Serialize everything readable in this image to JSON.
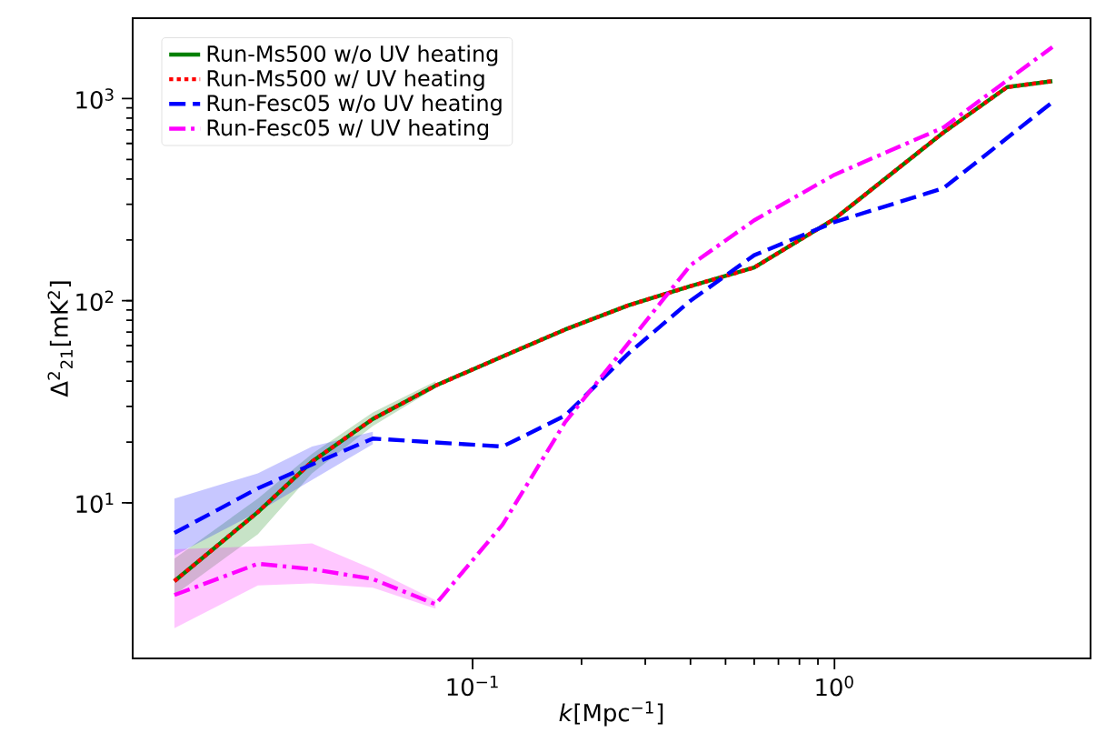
{
  "chart_data": {
    "type": "line",
    "xlabel": "*k*[Mpc$^{−1}$]",
    "ylabel": "Δ$^{2}$$_{21}$[mK$^{2}$]",
    "log": "xy",
    "x": [
      0.015,
      0.0255,
      0.036,
      0.053,
      0.079,
      0.121,
      0.18,
      0.27,
      0.4,
      0.6,
      1.0,
      2.0,
      3.0,
      4.0
    ],
    "xlim": [
      0.0115,
      5.1
    ],
    "ylim": [
      1.7,
      2500
    ],
    "xticks": [
      {
        "value": 0.1,
        "label": "10$^{−1}$"
      },
      {
        "value": 1,
        "label": "10$^{0}$"
      }
    ],
    "yticks": [
      {
        "value": 10,
        "label": "10$^{1}$"
      },
      {
        "value": 100,
        "label": "10$^{2}$"
      },
      {
        "value": 1000,
        "label": "10$^{3}$"
      }
    ],
    "grid": false,
    "legend": "top left",
    "marker": "none",
    "series": [
      {
        "name": "Run-Ms500 w/o UV heating",
        "color": "#008000",
        "line_style": "solid",
        "values": [
          4.1,
          9,
          16,
          26,
          38,
          53,
          72,
          95,
          118,
          146,
          254,
          680,
          1140,
          1220
        ],
        "lower": [
          3.5,
          7,
          14,
          24,
          37,
          null,
          null,
          null,
          null,
          null,
          null,
          null,
          null,
          null
        ],
        "upper": [
          5.3,
          10.5,
          17.5,
          28,
          40,
          null,
          null,
          null,
          null,
          null,
          null,
          null,
          null,
          null
        ]
      },
      {
        "name": "Run-Ms500 w/ UV heating",
        "color": "#ff0000",
        "line_style": "dotted",
        "values": [
          4.1,
          9,
          16,
          26,
          38,
          53,
          72,
          95,
          118,
          146,
          254,
          680,
          1140,
          1220
        ]
      },
      {
        "name": "Run-Fesc05 w/o UV heating",
        "color": "#0000ff",
        "line_style": "dashed",
        "values": [
          7.1,
          11.8,
          15.5,
          20.8,
          null,
          19,
          27,
          55,
          100,
          168,
          245,
          360,
          null,
          960
        ],
        "lower": [
          5.5,
          9,
          13,
          19.5,
          null,
          null,
          null,
          null,
          null,
          null,
          null,
          null,
          null,
          null
        ],
        "upper": [
          10.5,
          14,
          19,
          22.5,
          null,
          null,
          null,
          null,
          null,
          null,
          null,
          null,
          null,
          null
        ]
      },
      {
        "name": "Run-Fesc05 w/ UV heating",
        "color": "#ff00ff",
        "line_style": "dashdot",
        "values": [
          3.5,
          5.0,
          4.7,
          4.2,
          3.15,
          7.8,
          25,
          62,
          150,
          250,
          420,
          720,
          null,
          1800
        ],
        "lower": [
          2.4,
          3.9,
          4.0,
          3.8,
          3.0,
          null,
          null,
          null,
          null,
          null,
          null,
          null,
          null,
          null
        ],
        "upper": [
          5.9,
          6.1,
          6.3,
          4.7,
          3.3,
          null,
          null,
          null,
          null,
          null,
          null,
          null,
          null,
          null
        ]
      }
    ]
  }
}
